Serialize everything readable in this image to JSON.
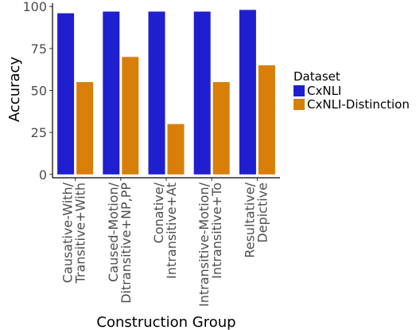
{
  "chart_data": {
    "type": "bar",
    "xlabel": "Construction Group",
    "ylabel": "Accuracy",
    "ylim": [
      -2,
      102
    ],
    "yticks": [
      0,
      25,
      50,
      75,
      100
    ],
    "grid": false,
    "legend_position": "right",
    "legend_title": "Dataset",
    "categories": [
      [
        "Causative-With/",
        "Transitive+With"
      ],
      [
        "Caused-Motion/",
        "Ditransitive+NP,PP"
      ],
      [
        "Conative/",
        "Intransitive+At"
      ],
      [
        "Intransitive-Motion/",
        "Intransitive+To"
      ],
      [
        "Resultative/",
        "Depictive"
      ]
    ],
    "series": [
      {
        "name": "CxNLI",
        "color": "#1f1fcf",
        "values": [
          96,
          97,
          97,
          97,
          98
        ]
      },
      {
        "name": "CxNLI-Distinction",
        "color": "#d87f0a",
        "values": [
          55,
          70,
          30,
          55,
          65
        ]
      }
    ]
  }
}
